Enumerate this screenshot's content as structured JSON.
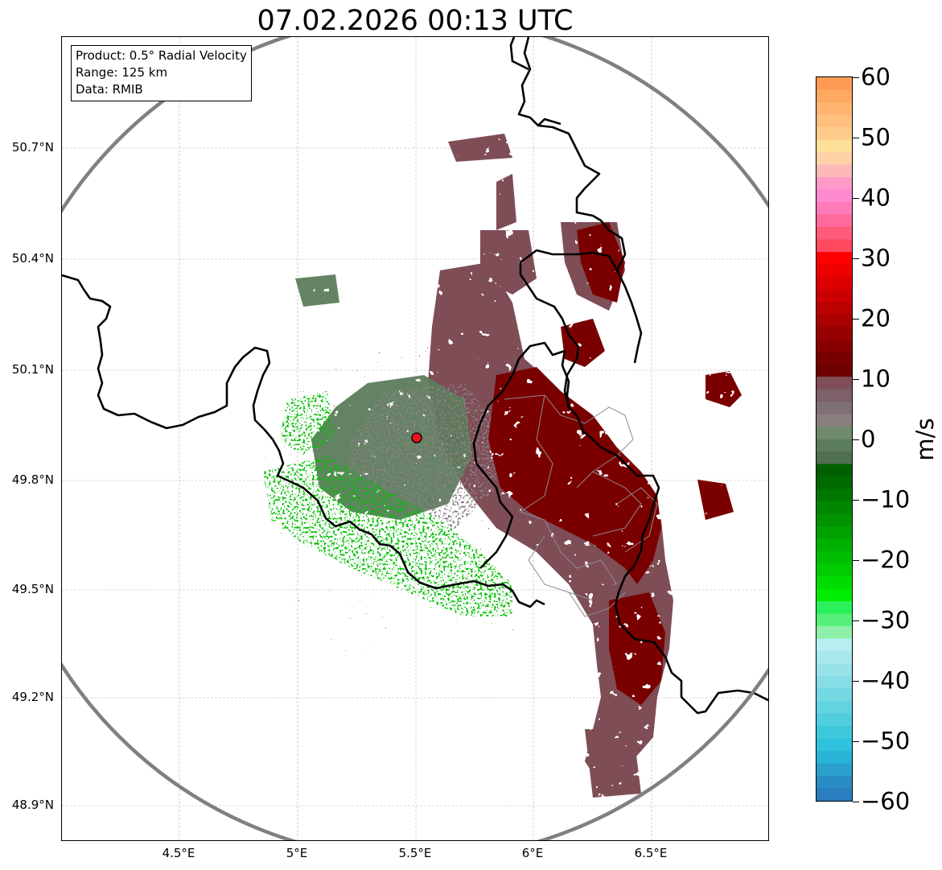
{
  "title": "07.02.2026 00:13 UTC",
  "info": {
    "product": "Product: 0.5° Radial Velocity",
    "range": "Range: 125 km",
    "source": "Data: RMIB"
  },
  "lat_labels": [
    "50.7°N",
    "50.4°N",
    "50.1°N",
    "49.8°N",
    "49.5°N",
    "49.2°N",
    "48.9°N"
  ],
  "lon_labels": [
    "4.5°E",
    "5°E",
    "5.5°E",
    "6°E",
    "6.5°E"
  ],
  "radar_site": {
    "lon": 5.505,
    "lat": 49.914
  },
  "colorbar": {
    "unit": "m/s",
    "min": -60,
    "max": 60,
    "ticks": [
      "60",
      "50",
      "40",
      "30",
      "20",
      "10",
      "0",
      "−10",
      "−20",
      "−30",
      "−40",
      "−50",
      "−60"
    ]
  },
  "colors": {
    "range_ring": "#808080",
    "border": "#000000",
    "subregion_border": "#8c8c8c",
    "radar_marker": "#e8141a",
    "incoming_strong": "#00e600",
    "incoming_weak": "#5c7d5c",
    "outgoing_weak": "#7f4e57",
    "outgoing_strong": "#7a0000"
  }
}
